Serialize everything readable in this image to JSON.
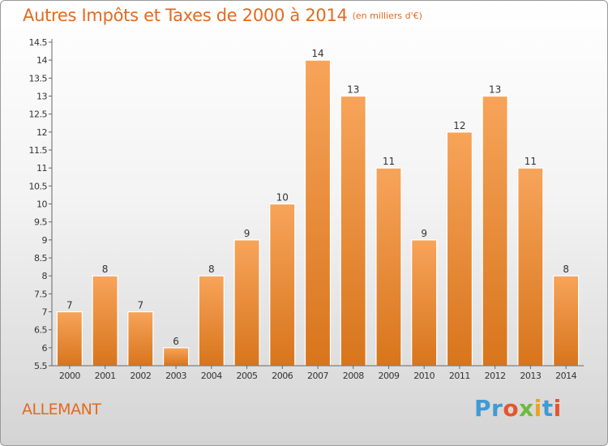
{
  "title": "Autres Impôts et Taxes de 2000 à 2014",
  "subtitle": "(en milliers d'€)",
  "commune": "ALLEMANT",
  "logo": {
    "letters": [
      {
        "ch": "P",
        "color": "#3f9ad6"
      },
      {
        "ch": "r",
        "color": "#3f9ad6"
      },
      {
        "ch": "o",
        "color": "#e7552b"
      },
      {
        "ch": "x",
        "color": "#6dbb3c"
      },
      {
        "ch": "i",
        "color": "#f0a21e"
      },
      {
        "ch": "t",
        "color": "#3f9ad6"
      },
      {
        "ch": "i",
        "color": "#e7552b"
      }
    ]
  },
  "colors": {
    "bar_top": "#f7a45a",
    "bar_bottom": "#d8751c",
    "text": "#333333"
  },
  "chart_data": {
    "type": "bar",
    "title": "Autres Impôts et Taxes de 2000 à 2014",
    "subtitle": "(en milliers d'€)",
    "categories": [
      "2000",
      "2001",
      "2002",
      "2003",
      "2004",
      "2005",
      "2006",
      "2007",
      "2008",
      "2009",
      "2010",
      "2011",
      "2012",
      "2013",
      "2014"
    ],
    "values": [
      7,
      8,
      7,
      6,
      8,
      9,
      10,
      14,
      13,
      11,
      9,
      12,
      13,
      11,
      8
    ],
    "ylim": [
      5.5,
      14.5
    ],
    "yticks": [
      "5.5",
      "6",
      "6.5",
      "7",
      "7.5",
      "8",
      "8.5",
      "9",
      "9.5",
      "10",
      "10.5",
      "11",
      "11.5",
      "12",
      "12.5",
      "13",
      "13.5",
      "14",
      "14.5"
    ],
    "grid": false,
    "xlabel": "",
    "ylabel": ""
  }
}
